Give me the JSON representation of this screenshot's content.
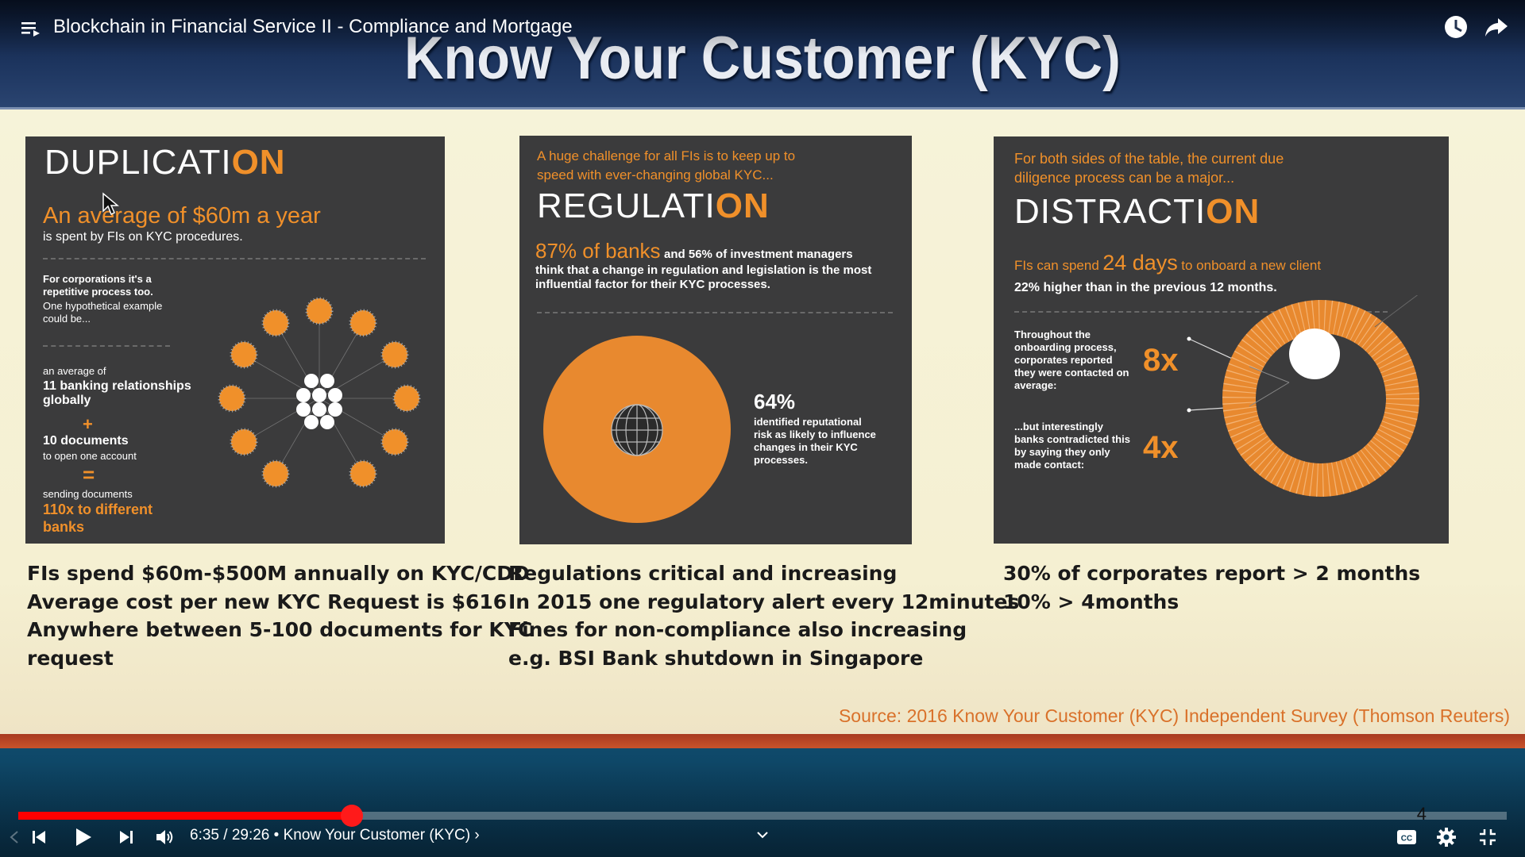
{
  "slide": {
    "title": "Know Your Customer (KYC)",
    "panel_duplication": {
      "heading_main": "DUPLICATI",
      "heading_on": "ON",
      "stat_main": "An average of $60m a year",
      "stat_sub": "is spent by FIs on KYC procedures.",
      "intro_bold": "For corporations it's a repetitive process too.",
      "intro_text": "One hypothetical example could be...",
      "avg_of": "an average of",
      "banking_rel": "11 banking relationships globally",
      "plus": "+",
      "documents": "10 documents",
      "to_open": "to open one account",
      "equals": "=",
      "sending": "sending documents",
      "result": "110x to different banks"
    },
    "panel_regulation": {
      "intro": "A huge challenge for all FIs is to keep up to speed with ever-changing global KYC...",
      "heading_main": "REGULATI",
      "heading_on": "ON",
      "stat_orange": "87% of banks",
      "stat_text_1": "and 56% of investment managers",
      "stat_text_2": "think that a change in regulation and legislation is the most influential factor for their KYC processes.",
      "pie_pct": "64%",
      "pie_text": "identified reputational risk as likely to influence changes in their KYC processes."
    },
    "panel_distraction": {
      "intro": "For both sides of the table, the current due diligence process can be a major...",
      "heading_main": "DISTRACTI",
      "heading_on": "ON",
      "stat_prefix": "FIs can spend",
      "stat_days": "24 days",
      "stat_suffix": "to onboard a new client",
      "stat_sub": "22% higher than in the previous 12 months.",
      "contacted_text": "Throughout the onboarding process, corporates reported they were contacted on average:",
      "contacted_value": "8x",
      "contradict_text": "...but interestingly banks contradicted this by saying they only made contact:",
      "contradict_value": "4x"
    },
    "caption_left": [
      "FIs spend $60m-$500M annually on KYC/CDD",
      "Average cost per new KYC Request is $616",
      "Anywhere between 5-100 documents for KYC",
      "request"
    ],
    "caption_mid": [
      "Regulations critical  and increasing",
      "In 2015 one regulatory alert every 12minutes",
      "Fines for non-compliance also increasing",
      "e.g. BSI Bank shutdown in Singapore"
    ],
    "caption_right": [
      "30% of corporates report > 2 months",
      "10%  > 4months"
    ],
    "source": "Source: 2016 Know Your Customer (KYC) Independent Survey (Thomson Reuters)"
  },
  "player": {
    "video_title": "Blockchain in Financial Service II - Compliance and Mortgage",
    "time_display": "6:35 / 29:26",
    "separator": " • ",
    "chapter_title": "Know Your Customer (KYC)",
    "chapter_arrow": "›",
    "chapter_marker": "4",
    "progress_fraction": 0.224,
    "colors": {
      "played": "#ff0000",
      "accent": "#f0902a"
    },
    "icons": [
      "playlist-icon",
      "watch-later-icon",
      "share-icon",
      "previous-icon",
      "play-icon",
      "next-icon",
      "volume-icon",
      "chevron-down-icon",
      "captions-icon",
      "settings-icon",
      "exit-fullscreen-icon"
    ]
  }
}
